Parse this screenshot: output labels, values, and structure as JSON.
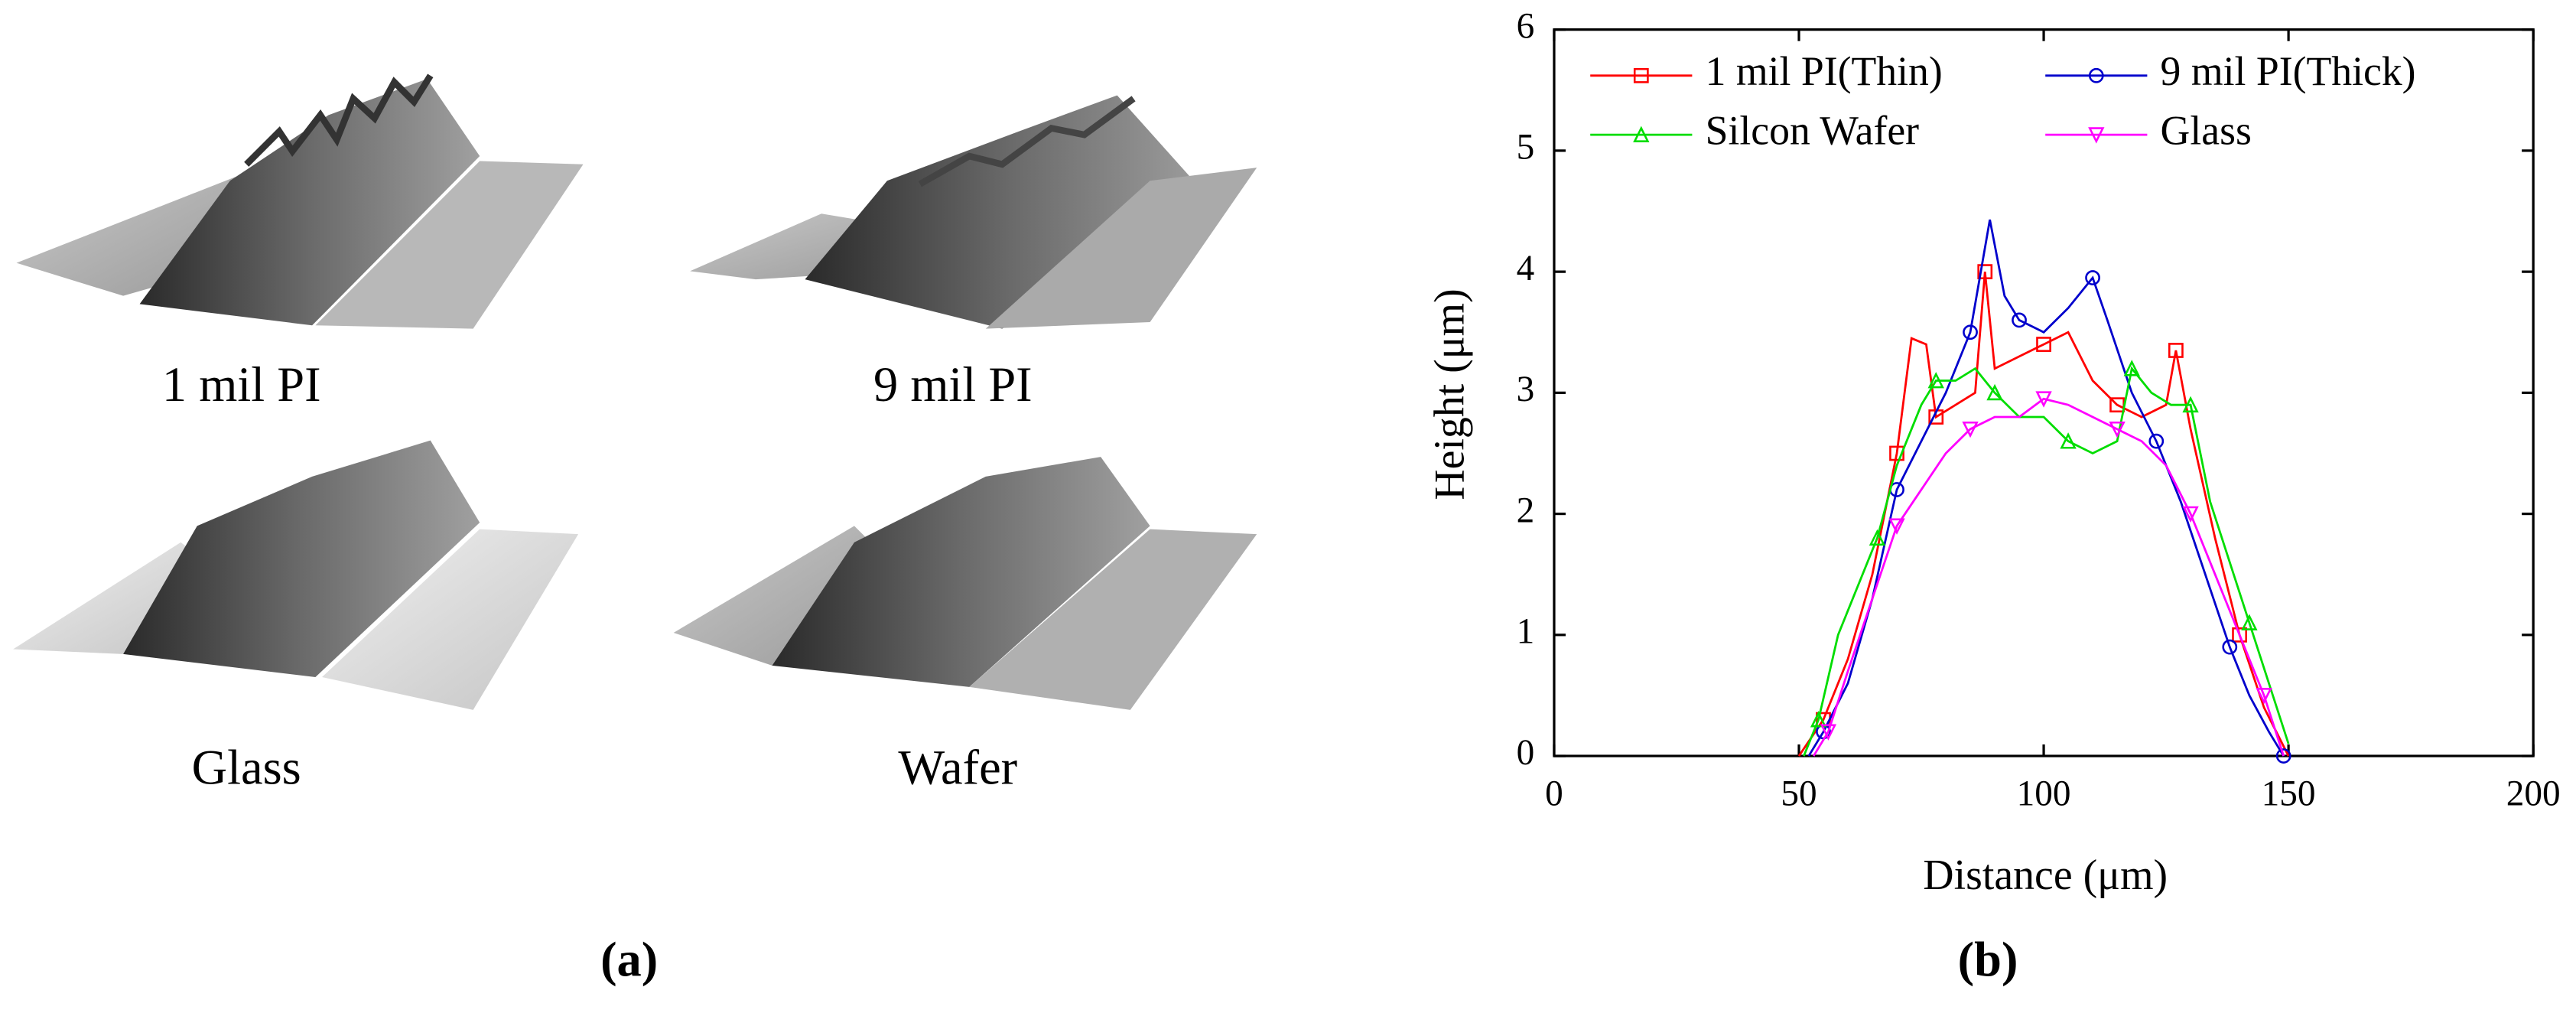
{
  "panel_a": {
    "labels": [
      "1 mil PI",
      "9 mil PI",
      "Glass",
      "Wafer"
    ]
  },
  "captions": [
    "(a)",
    "(b)"
  ],
  "chart_data": {
    "type": "line",
    "x_label": "Distance (μm)",
    "y_label": "Height (μm)",
    "xlim": [
      0,
      200
    ],
    "xticks": [
      0,
      50,
      100,
      150,
      200
    ],
    "ylim": [
      0,
      6
    ],
    "yticks": [
      0,
      1,
      2,
      3,
      4,
      5,
      6
    ],
    "legend_loc": "upper",
    "legend_columns": 2,
    "series": [
      {
        "name": "1 mil PI(Thin)",
        "color": "#ff0000",
        "marker": "square",
        "x": [
          50,
          55,
          60,
          65,
          70,
          73,
          76,
          78,
          82,
          86,
          88,
          90,
          95,
          100,
          105,
          110,
          115,
          120,
          125,
          127,
          130,
          135,
          140,
          145,
          150
        ],
        "values": [
          0,
          0.3,
          0.8,
          1.5,
          2.5,
          3.45,
          3.4,
          2.8,
          2.9,
          3.0,
          4.0,
          3.2,
          3.3,
          3.4,
          3.5,
          3.1,
          2.9,
          2.8,
          2.9,
          3.35,
          2.7,
          1.8,
          1.0,
          0.4,
          0
        ]
      },
      {
        "name": "9 mil PI(Thick)",
        "color": "#0000cc",
        "marker": "circle",
        "x": [
          52,
          55,
          60,
          65,
          70,
          75,
          80,
          85,
          89,
          92,
          95,
          100,
          105,
          110,
          113,
          118,
          123,
          128,
          133,
          138,
          142,
          146,
          149
        ],
        "values": [
          0,
          0.2,
          0.6,
          1.3,
          2.2,
          2.6,
          3.0,
          3.5,
          4.43,
          3.8,
          3.6,
          3.5,
          3.7,
          3.95,
          3.6,
          3.0,
          2.6,
          2.1,
          1.5,
          0.9,
          0.5,
          0.2,
          0
        ]
      },
      {
        "name": "Silcon Wafer",
        "color": "#00dd00",
        "marker": "triangle",
        "x": [
          51,
          54,
          58,
          62,
          66,
          70,
          75,
          78,
          82,
          86,
          90,
          95,
          100,
          105,
          110,
          115,
          118,
          122,
          126,
          130,
          134,
          138,
          142,
          146,
          150
        ],
        "values": [
          0,
          0.3,
          1.0,
          1.4,
          1.8,
          2.4,
          2.9,
          3.1,
          3.1,
          3.2,
          3.0,
          2.8,
          2.8,
          2.6,
          2.5,
          2.6,
          3.2,
          3.0,
          2.9,
          2.9,
          2.1,
          1.6,
          1.1,
          0.6,
          0.1
        ]
      },
      {
        "name": "Glass",
        "color": "#ff00ff",
        "marker": "triangle-down",
        "x": [
          53,
          56,
          60,
          65,
          70,
          75,
          80,
          85,
          90,
          95,
          100,
          105,
          110,
          115,
          120,
          125,
          130,
          135,
          140,
          145,
          149
        ],
        "values": [
          0,
          0.2,
          0.7,
          1.3,
          1.9,
          2.2,
          2.5,
          2.7,
          2.8,
          2.8,
          2.95,
          2.9,
          2.8,
          2.7,
          2.6,
          2.4,
          2.0,
          1.5,
          1.0,
          0.5,
          0
        ]
      }
    ]
  }
}
